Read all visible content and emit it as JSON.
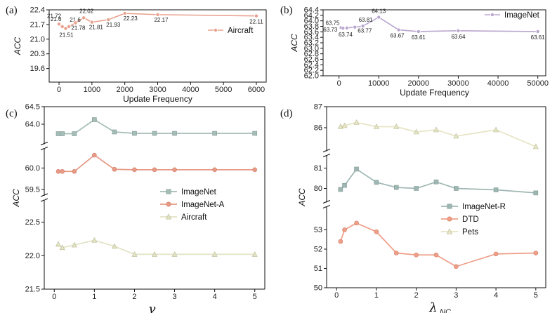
{
  "colors": {
    "aircraft_a": "#e8a28f",
    "imagenet_b": "#b9a6cf",
    "imagenet": "#a5bdb6",
    "imagenet_a": "#e79a86",
    "aircraft_c": "#e2e3c4",
    "imagenet_r": "#9fb7b3",
    "dtd": "#ef9f88",
    "pets": "#e6e5c5"
  },
  "chart_data": [
    {
      "panel": "(a)",
      "type": "line",
      "xlabel": "Update Frequency",
      "ylabel": "ACC",
      "xlim": [
        -300,
        6300
      ],
      "ylim": [
        18.95,
        22.4
      ],
      "xticks": [
        0,
        1000,
        2000,
        3000,
        4000,
        5000,
        6000
      ],
      "yticks": [
        19.6,
        20.3,
        21.0,
        21.7,
        22.4
      ],
      "ytick_labels": [
        "19.6",
        "20.3",
        "21.0",
        "21.7",
        "22.4"
      ],
      "legend_position": "top-right",
      "series": [
        {
          "name": "Aircraft",
          "color_key": "aircraft_a",
          "x": [
            0,
            100,
            200,
            300,
            500,
            750,
            1000,
            1500,
            2000,
            3000,
            6000
          ],
          "y": [
            21.72,
            21.6,
            21.51,
            21.6,
            21.78,
            22.02,
            21.81,
            21.93,
            22.23,
            22.17,
            22.11
          ],
          "labels": [
            "21.72",
            "21.6",
            "21.51",
            "21.6",
            "21.78",
            "22.02",
            "21.81",
            "21.93",
            "22.23",
            "22.17",
            "22.11"
          ]
        }
      ]
    },
    {
      "panel": "(b)",
      "type": "line",
      "xlabel": "Update Frequency",
      "ylabel": "ACC",
      "xlim": [
        -4000,
        52000
      ],
      "ylim": [
        62.0,
        64.4
      ],
      "xticks": [
        0,
        10000,
        20000,
        30000,
        40000,
        50000
      ],
      "yticks": [
        62.0,
        62.2,
        62.4,
        62.6,
        62.8,
        63.0,
        63.2,
        63.4,
        63.6,
        63.8,
        64.0,
        64.2,
        64.4
      ],
      "ytick_labels": [
        "62.0",
        "62.2",
        "62.4",
        "62.6",
        "62.8",
        "63.0",
        "63.2",
        "63.4",
        "63.6",
        "63.8",
        "64.0",
        "64.2",
        "64.4"
      ],
      "legend_position": "top-right",
      "series": [
        {
          "name": "ImageNet",
          "color_key": "imagenet_b",
          "x": [
            500,
            1000,
            2000,
            4000,
            6000,
            10000,
            15000,
            20000,
            30000,
            50000
          ],
          "y": [
            63.75,
            63.73,
            63.74,
            63.77,
            63.81,
            64.13,
            63.67,
            63.61,
            63.64,
            63.61
          ],
          "labels": [
            "63.75",
            "63.73",
            "63.74",
            "63.77",
            "63.81",
            "64.13",
            "63.67",
            "63.61",
            "63.64",
            "63.61"
          ]
        }
      ]
    },
    {
      "panel": "(c)",
      "type": "line",
      "xlabel": "γ",
      "ylabel": "ACC",
      "xlim": [
        -0.25,
        5.25
      ],
      "xticks": [
        0,
        1,
        2,
        3,
        4,
        5
      ],
      "legend_position": "center-right",
      "broken_axis": true,
      "bands": [
        {
          "ylim": [
            63.5,
            64.5
          ],
          "yticks": [
            64.0,
            64.5
          ],
          "ytick_labels": [
            "64.0",
            "64.5"
          ]
        },
        {
          "ylim": [
            59.4,
            60.4
          ],
          "yticks": [
            59.5,
            60.0
          ],
          "ytick_labels": [
            "59.5",
            "60.0"
          ]
        },
        {
          "ylim": [
            21.5,
            22.8
          ],
          "yticks": [
            21.5,
            22.0,
            22.5
          ],
          "ytick_labels": [
            "21.5",
            "22.0",
            "22.5"
          ]
        }
      ],
      "series": [
        {
          "name": "ImageNet",
          "color_key": "imagenet",
          "band": 0,
          "marker": "square",
          "x": [
            0.1,
            0.2,
            0.5,
            1,
            1.5,
            2,
            2.5,
            3,
            4,
            5
          ],
          "y": [
            63.73,
            63.73,
            63.73,
            64.13,
            63.78,
            63.74,
            63.74,
            63.74,
            63.74,
            63.74
          ]
        },
        {
          "name": "ImageNet-A",
          "color_key": "imagenet_a",
          "band": 1,
          "marker": "circle",
          "x": [
            0.1,
            0.2,
            0.5,
            1,
            1.5,
            2,
            2.5,
            3,
            4,
            5
          ],
          "y": [
            59.92,
            59.92,
            59.92,
            60.3,
            59.97,
            59.96,
            59.96,
            59.96,
            59.96,
            59.96
          ]
        },
        {
          "name": "Aircraft",
          "color_key": "aircraft_c",
          "band": 2,
          "marker": "triangle",
          "x": [
            0.1,
            0.2,
            0.5,
            1,
            1.5,
            2,
            2.5,
            3,
            4,
            5
          ],
          "y": [
            22.17,
            22.12,
            22.16,
            22.23,
            22.14,
            22.02,
            22.02,
            22.02,
            22.02,
            22.02
          ]
        }
      ]
    },
    {
      "panel": "(d)",
      "type": "line",
      "xlabel": "λ",
      "xlabel_sub": "NC",
      "ylabel": "ACC",
      "xlim": [
        -0.25,
        5.25
      ],
      "xticks": [
        0,
        1,
        2,
        3,
        4,
        5
      ],
      "legend_position": "center-right",
      "broken_axis": true,
      "bands": [
        {
          "ylim": [
            85.0,
            87.0
          ],
          "yticks": [
            86,
            87
          ],
          "ytick_labels": [
            "86",
            "87"
          ]
        },
        {
          "ylim": [
            79.5,
            81.5
          ],
          "yticks": [
            80,
            81
          ],
          "ytick_labels": [
            "80",
            "81"
          ]
        },
        {
          "ylim": [
            50.0,
            54.0
          ],
          "yticks": [
            50,
            51,
            52,
            53
          ],
          "ytick_labels": [
            "50",
            "51",
            "52",
            "53"
          ]
        }
      ],
      "series": [
        {
          "name": "ImageNet-R",
          "color_key": "imagenet_r",
          "band": 1,
          "marker": "square",
          "x": [
            0.1,
            0.2,
            0.5,
            1,
            1.5,
            2,
            2.5,
            3,
            4,
            5
          ],
          "y": [
            79.95,
            80.15,
            80.95,
            80.3,
            80.05,
            80.0,
            80.32,
            80.0,
            79.93,
            79.78
          ]
        },
        {
          "name": "DTD",
          "color_key": "dtd",
          "band": 2,
          "marker": "circle",
          "x": [
            0.1,
            0.2,
            0.5,
            1,
            1.5,
            2,
            2.5,
            3,
            4,
            5
          ],
          "y": [
            52.4,
            53.0,
            53.35,
            52.9,
            51.8,
            51.7,
            51.7,
            51.1,
            51.75,
            51.8
          ]
        },
        {
          "name": "Pets",
          "color_key": "pets",
          "band": 0,
          "marker": "triangle",
          "x": [
            0.1,
            0.2,
            0.5,
            1,
            1.5,
            2,
            2.5,
            3,
            4,
            5
          ],
          "y": [
            86.05,
            86.1,
            86.25,
            86.05,
            86.05,
            85.8,
            85.9,
            85.6,
            85.9,
            85.1
          ]
        }
      ]
    }
  ]
}
